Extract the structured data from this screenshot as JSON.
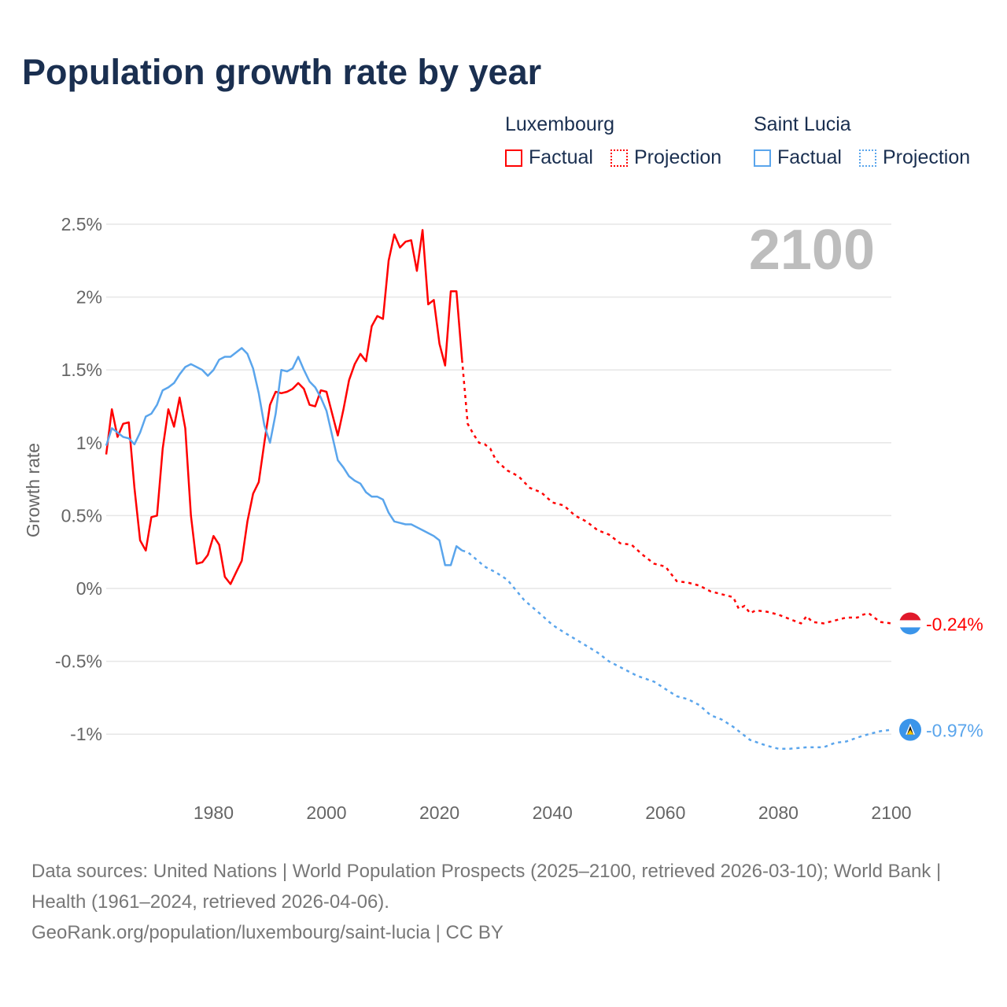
{
  "title": "Population growth rate by year",
  "legend": {
    "groups": [
      {
        "name": "Luxembourg",
        "factual": "Factual",
        "projection": "Projection",
        "color": "#ff0000"
      },
      {
        "name": "Saint Lucia",
        "factual": "Factual",
        "projection": "Projection",
        "color": "#5aa5ec"
      }
    ]
  },
  "footer": {
    "sources": "Data sources: United Nations | World Population Prospects (2025–2100, retrieved 2026-03-10); World Bank | Health (1961–2024, retrieved 2026-04-06).",
    "credit": "GeoRank.org/population/luxembourg/saint-lucia | CC BY"
  },
  "chart_data": {
    "type": "line",
    "title": "Population growth rate by year",
    "xlabel": "",
    "ylabel": "Growth rate",
    "xlim": [
      1961,
      2100
    ],
    "ylim": [
      -1.25,
      2.5
    ],
    "x_ticks": [
      {
        "v": 1980,
        "label": "1980"
      },
      {
        "v": 2000,
        "label": "2000"
      },
      {
        "v": 2020,
        "label": "2020"
      },
      {
        "v": 2040,
        "label": "2040"
      },
      {
        "v": 2060,
        "label": "2060"
      },
      {
        "v": 2080,
        "label": "2080"
      },
      {
        "v": 2100,
        "label": "2100"
      }
    ],
    "y_ticks": [
      {
        "v": 2.5,
        "label": "2.5%"
      },
      {
        "v": 2,
        "label": "2%"
      },
      {
        "v": 1.5,
        "label": "1.5%"
      },
      {
        "v": 1,
        "label": "1%"
      },
      {
        "v": 0.5,
        "label": "0.5%"
      },
      {
        "v": 0,
        "label": "0%"
      },
      {
        "v": -0.5,
        "label": "-0.5%"
      },
      {
        "v": -1,
        "label": "-1%"
      }
    ],
    "grid": true,
    "year_label": "2100",
    "series": [
      {
        "name": "Luxembourg",
        "color": "#ff0000",
        "end_label": "-0.24%",
        "factual_start": 1961,
        "factual": [
          0.92,
          1.23,
          1.04,
          1.13,
          1.14,
          0.69,
          0.33,
          0.26,
          0.49,
          0.5,
          0.96,
          1.23,
          1.11,
          1.31,
          1.1,
          0.5,
          0.17,
          0.18,
          0.23,
          0.36,
          0.3,
          0.08,
          0.03,
          0.11,
          0.19,
          0.46,
          0.65,
          0.73,
          1.0,
          1.26,
          1.35,
          1.34,
          1.35,
          1.37,
          1.41,
          1.37,
          1.26,
          1.25,
          1.36,
          1.35,
          1.2,
          1.05,
          1.23,
          1.43,
          1.54,
          1.61,
          1.56,
          1.8,
          1.87,
          1.85,
          2.25,
          2.43,
          2.34,
          2.38,
          2.39,
          2.18,
          2.46,
          1.95,
          1.98,
          1.68,
          1.53,
          2.04,
          2.04,
          1.57
        ],
        "projection": [
          [
            2024,
            1.57
          ],
          [
            2025,
            1.13
          ],
          [
            2026,
            1.06
          ],
          [
            2027,
            1.0
          ],
          [
            2028,
            0.99
          ],
          [
            2029,
            0.96
          ],
          [
            2030,
            0.88
          ],
          [
            2032,
            0.81
          ],
          [
            2034,
            0.77
          ],
          [
            2036,
            0.69
          ],
          [
            2038,
            0.66
          ],
          [
            2040,
            0.59
          ],
          [
            2042,
            0.57
          ],
          [
            2044,
            0.5
          ],
          [
            2046,
            0.46
          ],
          [
            2048,
            0.4
          ],
          [
            2050,
            0.37
          ],
          [
            2052,
            0.31
          ],
          [
            2054,
            0.3
          ],
          [
            2056,
            0.23
          ],
          [
            2058,
            0.17
          ],
          [
            2060,
            0.15
          ],
          [
            2062,
            0.05
          ],
          [
            2064,
            0.04
          ],
          [
            2066,
            0.02
          ],
          [
            2068,
            -0.02
          ],
          [
            2070,
            -0.04
          ],
          [
            2072,
            -0.06
          ],
          [
            2073,
            -0.14
          ],
          [
            2074,
            -0.12
          ],
          [
            2075,
            -0.17
          ],
          [
            2076,
            -0.15
          ],
          [
            2078,
            -0.16
          ],
          [
            2080,
            -0.18
          ],
          [
            2082,
            -0.21
          ],
          [
            2084,
            -0.24
          ],
          [
            2085,
            -0.19
          ],
          [
            2086,
            -0.23
          ],
          [
            2088,
            -0.24
          ],
          [
            2090,
            -0.22
          ],
          [
            2092,
            -0.2
          ],
          [
            2094,
            -0.2
          ],
          [
            2095,
            -0.18
          ],
          [
            2096,
            -0.17
          ],
          [
            2098,
            -0.23
          ],
          [
            2100,
            -0.24
          ]
        ]
      },
      {
        "name": "Saint Lucia",
        "color": "#5aa5ec",
        "end_label": "-0.97%",
        "factual_start": 1961,
        "factual": [
          0.98,
          1.1,
          1.07,
          1.04,
          1.03,
          0.99,
          1.07,
          1.18,
          1.2,
          1.26,
          1.36,
          1.38,
          1.41,
          1.47,
          1.52,
          1.54,
          1.52,
          1.5,
          1.46,
          1.5,
          1.57,
          1.59,
          1.59,
          1.62,
          1.65,
          1.61,
          1.51,
          1.34,
          1.12,
          1.0,
          1.2,
          1.5,
          1.49,
          1.51,
          1.59,
          1.5,
          1.42,
          1.38,
          1.31,
          1.22,
          1.05,
          0.88,
          0.83,
          0.77,
          0.74,
          0.72,
          0.66,
          0.63,
          0.63,
          0.61,
          0.52,
          0.46,
          0.45,
          0.44,
          0.44,
          0.42,
          0.4,
          0.38,
          0.36,
          0.33,
          0.16,
          0.16,
          0.29,
          0.26
        ],
        "projection": [
          [
            2024,
            0.26
          ],
          [
            2025,
            0.25
          ],
          [
            2028,
            0.15
          ],
          [
            2030,
            0.11
          ],
          [
            2032,
            0.06
          ],
          [
            2035,
            -0.08
          ],
          [
            2038,
            -0.18
          ],
          [
            2040,
            -0.25
          ],
          [
            2042,
            -0.3
          ],
          [
            2045,
            -0.37
          ],
          [
            2048,
            -0.44
          ],
          [
            2050,
            -0.5
          ],
          [
            2053,
            -0.56
          ],
          [
            2055,
            -0.6
          ],
          [
            2058,
            -0.64
          ],
          [
            2060,
            -0.69
          ],
          [
            2062,
            -0.74
          ],
          [
            2064,
            -0.76
          ],
          [
            2066,
            -0.8
          ],
          [
            2068,
            -0.87
          ],
          [
            2070,
            -0.9
          ],
          [
            2072,
            -0.95
          ],
          [
            2075,
            -1.04
          ],
          [
            2078,
            -1.08
          ],
          [
            2080,
            -1.1
          ],
          [
            2082,
            -1.1
          ],
          [
            2085,
            -1.09
          ],
          [
            2088,
            -1.09
          ],
          [
            2090,
            -1.06
          ],
          [
            2092,
            -1.05
          ],
          [
            2095,
            -1.01
          ],
          [
            2098,
            -0.98
          ],
          [
            2100,
            -0.97
          ]
        ]
      }
    ]
  }
}
